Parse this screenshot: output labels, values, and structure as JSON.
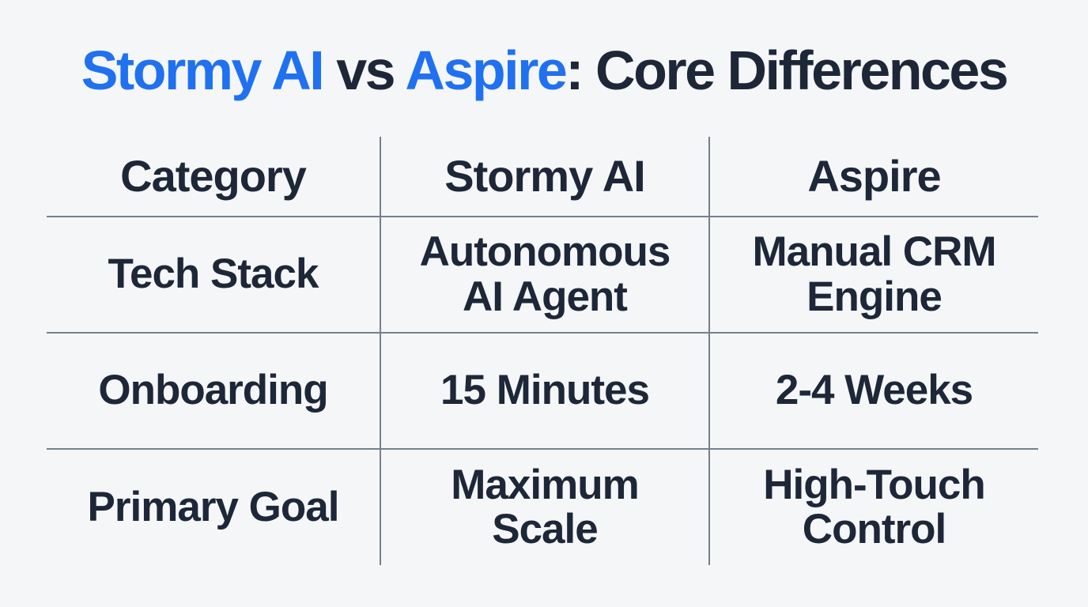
{
  "title": {
    "segments": [
      {
        "text": "Stormy AI",
        "color": "#2071f0"
      },
      {
        "text": " vs ",
        "color": "#1d2737"
      },
      {
        "text": "Aspire",
        "color": "#2071f0"
      },
      {
        "text": ": Core Differences",
        "color": "#1d2737"
      }
    ]
  },
  "chart_data": {
    "type": "table",
    "title": "Stormy AI vs Aspire: Core Differences",
    "columns": [
      "Category",
      "Stormy AI",
      "Aspire"
    ],
    "rows": [
      [
        "Tech Stack",
        "Autonomous AI Agent",
        "Manual CRM Engine"
      ],
      [
        "Onboarding",
        "15 Minutes",
        "2-4 Weeks"
      ],
      [
        "Primary Goal",
        "Maximum Scale",
        "High-Touch Control"
      ]
    ],
    "layout": {
      "grid": "inner lines only, no outer border",
      "header_row": true
    }
  },
  "colors": {
    "background": "#f4f6f8",
    "accent_blue": "#2071f0",
    "dark_navy": "#1d2737",
    "muted_gray": "#6e7683",
    "grid_line": "#76808c"
  }
}
